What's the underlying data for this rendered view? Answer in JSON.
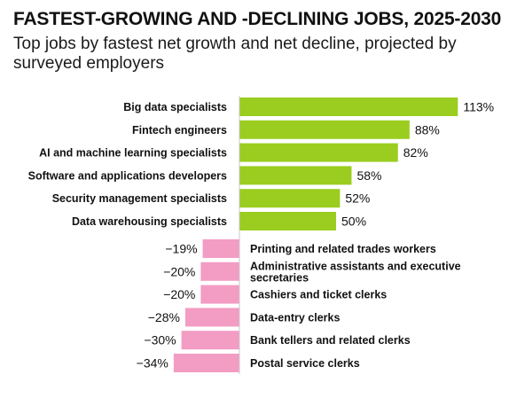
{
  "title": "FASTEST-GROWING AND -DECLINING JOBS, 2025-2030",
  "subtitle": "Top jobs by fastest net growth and net decline, projected by surveyed employers",
  "colors": {
    "growth": "#9acd1f",
    "decline": "#f39cc4",
    "axis": "#c8c8c8"
  },
  "chart_data": {
    "type": "bar",
    "orientation": "horizontal",
    "title": "FASTEST-GROWING AND -DECLINING JOBS, 2025-2030",
    "subtitle": "Top jobs by fastest net growth and net decline, projected by surveyed employers",
    "categories": [
      "Big data specialists",
      "Fintech engineers",
      "AI and machine learning specialists",
      "Software and applications developers",
      "Security management specialists",
      "Data warehousing specialists",
      "Printing and related trades workers",
      "Administrative assistants and executive secretaries",
      "Cashiers and ticket clerks",
      "Data-entry clerks",
      "Bank tellers and related clerks",
      "Postal service clerks"
    ],
    "category_lines": [
      [
        "Big data specialists"
      ],
      [
        "Fintech engineers"
      ],
      [
        "AI and machine learning specialists"
      ],
      [
        "Software and applications developers"
      ],
      [
        "Security management specialists"
      ],
      [
        "Data warehousing specialists"
      ],
      [
        "Printing and related trades workers"
      ],
      [
        "Administrative assistants and executive",
        "secretaries"
      ],
      [
        "Cashiers and ticket clerks"
      ],
      [
        "Data-entry clerks"
      ],
      [
        "Bank tellers and related clerks"
      ],
      [
        "Postal service clerks"
      ]
    ],
    "values": [
      113,
      88,
      82,
      58,
      52,
      50,
      -19,
      -20,
      -20,
      -28,
      -30,
      -34
    ],
    "value_labels": [
      "113%",
      "88%",
      "82%",
      "58%",
      "52%",
      "50%",
      "−19%",
      "−20%",
      "−20%",
      "−28%",
      "−30%",
      "−34%"
    ],
    "unit": "%",
    "xlim": [
      -34,
      113
    ],
    "grid": false,
    "legend": "none"
  }
}
